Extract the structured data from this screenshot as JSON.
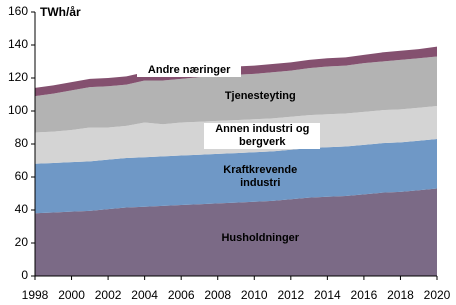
{
  "chart_data": {
    "type": "stacked-area",
    "y_label": "TWh/år",
    "x": [
      1998,
      1999,
      2000,
      2001,
      2002,
      2003,
      2004,
      2005,
      2006,
      2007,
      2008,
      2009,
      2010,
      2011,
      2012,
      2013,
      2014,
      2015,
      2016,
      2017,
      2018,
      2019,
      2020
    ],
    "xlim": [
      1998,
      2020
    ],
    "xticks": [
      1998,
      2000,
      2002,
      2004,
      2006,
      2008,
      2010,
      2012,
      2014,
      2016,
      2018,
      2020
    ],
    "ylim": [
      0,
      160
    ],
    "yticks": [
      0,
      20,
      40,
      60,
      80,
      100,
      120,
      140,
      160
    ],
    "series": [
      {
        "name": "Husholdninger",
        "color": "#7b6a86",
        "values": [
          38,
          38.5,
          39,
          39.5,
          40.5,
          41.5,
          42,
          42.5,
          43,
          43.5,
          44,
          44.5,
          45,
          45.5,
          46.5,
          47.5,
          48,
          48.5,
          49.5,
          50.5,
          51,
          52,
          53
        ]
      },
      {
        "name": "Kraftkrevende industri",
        "color": "#6f98c6",
        "values": [
          30,
          30,
          30,
          30,
          30,
          30,
          30,
          30,
          30,
          30,
          30,
          30,
          30,
          30,
          30,
          30,
          30,
          30,
          30,
          30,
          30,
          30,
          30
        ]
      },
      {
        "name": "Annen industri og bergverk",
        "color": "#d4d4d4",
        "values": [
          19,
          19,
          19.5,
          20.5,
          19.5,
          19.5,
          21,
          19.5,
          20,
          20,
          20,
          20,
          20,
          20,
          20,
          20,
          20,
          20,
          20,
          20,
          20,
          20,
          20
        ]
      },
      {
        "name": "Tjenesteyting",
        "color": "#b3b3b3",
        "values": [
          22,
          23,
          24,
          24.5,
          25,
          25,
          25.5,
          26.5,
          26.5,
          27,
          27,
          27.5,
          27.5,
          28,
          28,
          28.5,
          29,
          29,
          29.5,
          29.5,
          30,
          30,
          30
        ]
      },
      {
        "name": "Andre næringer",
        "color": "#84506f",
        "values": [
          5,
          5,
          5,
          5,
          5,
          5,
          5,
          5,
          5,
          5,
          5,
          5,
          5,
          5,
          5,
          5,
          5,
          5,
          5,
          5.5,
          5.5,
          5.5,
          6
        ]
      }
    ]
  }
}
